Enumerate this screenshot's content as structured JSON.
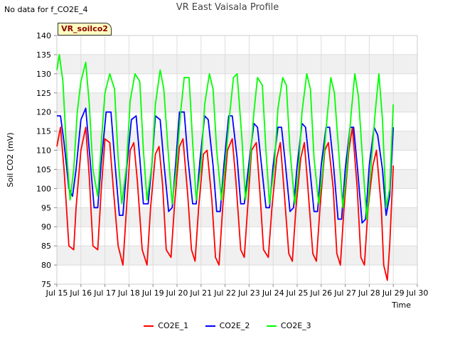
{
  "no_data_text": "No data for f_CO2E_4",
  "site_tag": "VR_soilco2",
  "chart_data": {
    "type": "line",
    "title": "VR East Vaisala Profile",
    "xlabel": "Time",
    "ylabel": "Soil CO2 (mV)",
    "xlim": [
      15,
      30
    ],
    "ylim": [
      75,
      140
    ],
    "x_ticks": [
      15,
      16,
      17,
      18,
      19,
      20,
      21,
      22,
      23,
      24,
      25,
      26,
      27,
      28,
      29,
      30
    ],
    "x_tick_labels": [
      "Jul 15",
      "Jul 16",
      "Jul 17",
      "Jul 18",
      "Jul 19",
      "Jul 20",
      "Jul 21",
      "Jul 22",
      "Jul 23",
      "Jul 24",
      "Jul 25",
      "Jul 26",
      "Jul 27",
      "Jul 28",
      "Jul 29",
      "Jul 30"
    ],
    "y_ticks": [
      75,
      80,
      85,
      90,
      95,
      100,
      105,
      110,
      115,
      120,
      125,
      130,
      135,
      140
    ],
    "legend_position": "bottom",
    "series": [
      {
        "name": "CO2E_1",
        "color": "#ff0000",
        "x": [
          15.0,
          15.15,
          15.3,
          15.5,
          15.7,
          15.8,
          16.0,
          16.2,
          16.35,
          16.5,
          16.7,
          16.85,
          17.0,
          17.2,
          17.35,
          17.55,
          17.75,
          17.9,
          18.05,
          18.2,
          18.35,
          18.55,
          18.75,
          18.9,
          19.1,
          19.25,
          19.4,
          19.55,
          19.75,
          19.9,
          20.1,
          20.25,
          20.45,
          20.6,
          20.75,
          20.9,
          21.1,
          21.25,
          21.45,
          21.6,
          21.75,
          21.9,
          22.1,
          22.3,
          22.45,
          22.65,
          22.8,
          22.95,
          23.1,
          23.3,
          23.45,
          23.6,
          23.8,
          23.95,
          24.15,
          24.3,
          24.45,
          24.65,
          24.8,
          24.95,
          25.15,
          25.3,
          25.45,
          25.65,
          25.8,
          25.95,
          26.15,
          26.3,
          26.5,
          26.65,
          26.8,
          26.95,
          27.15,
          27.3,
          27.5,
          27.65,
          27.8,
          27.95,
          28.15,
          28.3,
          28.5,
          28.6,
          28.75,
          28.85,
          29.0
        ],
        "values": [
          111,
          116,
          105,
          85,
          84,
          95,
          110,
          116,
          103,
          85,
          84,
          100,
          113,
          112,
          100,
          85,
          80,
          95,
          110,
          112,
          102,
          84,
          80,
          95,
          109,
          111,
          101,
          84,
          82,
          96,
          111,
          113,
          98,
          84,
          81,
          95,
          109,
          110,
          97,
          82,
          80,
          95,
          110,
          113,
          102,
          84,
          82,
          96,
          110,
          112,
          99,
          84,
          82,
          95,
          108,
          112,
          100,
          83,
          81,
          95,
          108,
          112,
          100,
          83,
          81,
          95,
          110,
          112,
          100,
          83,
          80,
          95,
          110,
          116,
          100,
          82,
          80,
          95,
          106,
          110,
          95,
          80,
          76,
          85,
          106
        ]
      },
      {
        "name": "CO2E_2",
        "color": "#0000ff",
        "x": [
          15.0,
          15.15,
          15.3,
          15.5,
          15.65,
          15.8,
          16.0,
          16.2,
          16.35,
          16.55,
          16.7,
          16.85,
          17.05,
          17.25,
          17.4,
          17.6,
          17.75,
          17.9,
          18.1,
          18.3,
          18.45,
          18.6,
          18.8,
          18.95,
          19.1,
          19.3,
          19.45,
          19.65,
          19.8,
          19.95,
          20.1,
          20.3,
          20.45,
          20.65,
          20.8,
          20.95,
          21.15,
          21.3,
          21.5,
          21.65,
          21.8,
          21.95,
          22.15,
          22.3,
          22.5,
          22.65,
          22.8,
          23.0,
          23.2,
          23.35,
          23.5,
          23.7,
          23.85,
          24.0,
          24.2,
          24.35,
          24.5,
          24.7,
          24.85,
          25.0,
          25.2,
          25.35,
          25.5,
          25.7,
          25.85,
          26.0,
          26.2,
          26.35,
          26.5,
          26.7,
          26.85,
          27.0,
          27.2,
          27.35,
          27.5,
          27.7,
          27.85,
          28.0,
          28.2,
          28.35,
          28.55,
          28.7,
          28.85,
          29.0
        ],
        "values": [
          119,
          119,
          112,
          100,
          98,
          105,
          118,
          121,
          110,
          95,
          95,
          107,
          120,
          120,
          108,
          93,
          93,
          105,
          118,
          119,
          108,
          96,
          96,
          106,
          119,
          118,
          107,
          94,
          95,
          107,
          120,
          120,
          108,
          96,
          96,
          107,
          119,
          118,
          106,
          94,
          94,
          106,
          119,
          119,
          108,
          96,
          96,
          107,
          117,
          116,
          107,
          95,
          95,
          106,
          116,
          116,
          107,
          94,
          95,
          106,
          117,
          116,
          107,
          94,
          94,
          106,
          116,
          116,
          107,
          92,
          92,
          105,
          116,
          116,
          106,
          91,
          92,
          106,
          116,
          114,
          105,
          93,
          98,
          116
        ]
      },
      {
        "name": "CO2E_3",
        "color": "#00ff00",
        "x": [
          15.0,
          15.1,
          15.25,
          15.4,
          15.55,
          15.7,
          15.85,
          16.0,
          16.2,
          16.35,
          16.5,
          16.7,
          16.85,
          17.0,
          17.2,
          17.4,
          17.55,
          17.7,
          17.9,
          18.05,
          18.25,
          18.45,
          18.6,
          18.75,
          18.95,
          19.1,
          19.3,
          19.45,
          19.65,
          19.8,
          19.95,
          20.15,
          20.3,
          20.5,
          20.65,
          20.8,
          21.0,
          21.15,
          21.35,
          21.5,
          21.65,
          21.85,
          22.0,
          22.2,
          22.35,
          22.5,
          22.7,
          22.85,
          23.0,
          23.2,
          23.35,
          23.55,
          23.7,
          23.85,
          24.05,
          24.2,
          24.4,
          24.55,
          24.7,
          24.9,
          25.05,
          25.2,
          25.4,
          25.55,
          25.7,
          25.9,
          26.05,
          26.25,
          26.4,
          26.55,
          26.75,
          26.9,
          27.05,
          27.25,
          27.4,
          27.55,
          27.75,
          27.9,
          28.05,
          28.25,
          28.4,
          28.55,
          28.7,
          28.85,
          29.0
        ],
        "values": [
          131,
          135,
          128,
          110,
          97,
          105,
          120,
          128,
          133,
          122,
          105,
          98,
          112,
          125,
          130,
          126,
          108,
          96,
          106,
          123,
          130,
          128,
          110,
          97,
          106,
          122,
          131,
          126,
          108,
          96,
          104,
          120,
          129,
          129,
          112,
          97,
          106,
          122,
          130,
          126,
          110,
          97,
          106,
          120,
          129,
          130,
          113,
          97,
          104,
          120,
          129,
          127,
          110,
          96,
          106,
          121,
          129,
          127,
          110,
          96,
          104,
          120,
          130,
          126,
          108,
          96,
          104,
          119,
          129,
          125,
          108,
          95,
          104,
          120,
          130,
          124,
          105,
          92,
          104,
          120,
          130,
          118,
          95,
          100,
          122
        ]
      }
    ]
  }
}
